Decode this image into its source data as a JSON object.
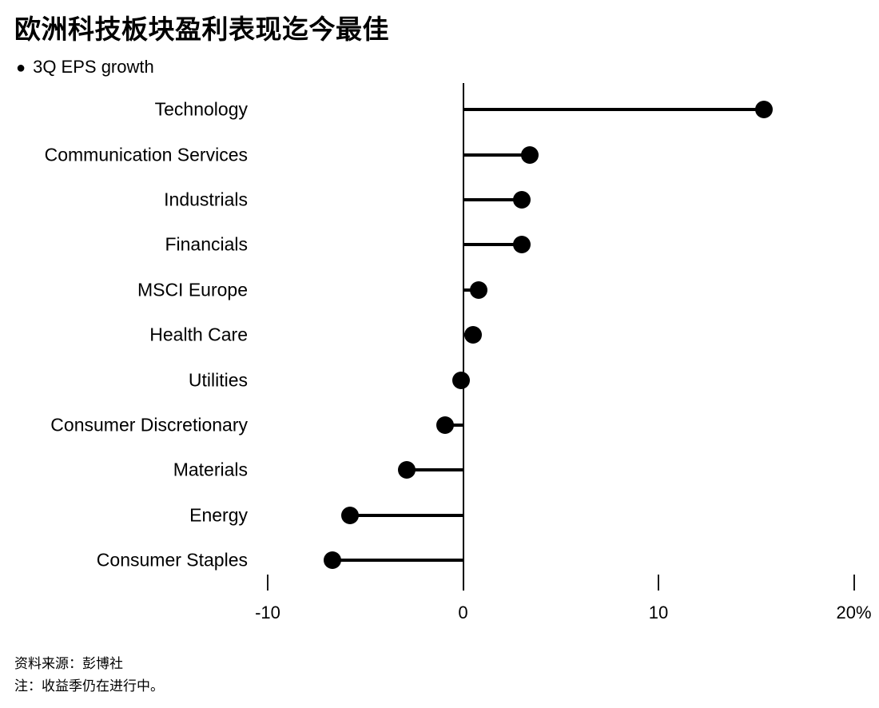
{
  "header": {
    "title": "欧洲科技板块盈利表现迄今最佳",
    "legend": {
      "marker": "●",
      "label": "3Q EPS growth"
    }
  },
  "chart_data": {
    "type": "bar",
    "variant": "horizontal-lollipop",
    "title": "欧洲科技板块盈利表现迄今最佳",
    "series_name": "3Q EPS growth",
    "categories": [
      "Technology",
      "Communication Services",
      "Industrials",
      "Financials",
      "MSCI Europe",
      "Health Care",
      "Utilities",
      "Consumer Discretionary",
      "Materials",
      "Energy",
      "Consumer Staples"
    ],
    "values": [
      15.4,
      3.4,
      3.0,
      3.0,
      0.8,
      0.5,
      -0.1,
      -0.9,
      -2.9,
      -5.8,
      -6.7
    ],
    "unit": "%",
    "xlabel": "",
    "ylabel": "",
    "xlim": [
      -11,
      21.5
    ],
    "x_ticks": [
      {
        "value": -10,
        "label": "-10"
      },
      {
        "value": 0,
        "label": "0"
      },
      {
        "value": 10,
        "label": "10"
      },
      {
        "value": 20,
        "label": "20%"
      }
    ],
    "baseline": 0,
    "grid": false,
    "legend_position": "top-left",
    "marker_color": "#000000",
    "background_color": "#ffffff"
  },
  "footer": {
    "source": "资料来源：彭博社",
    "note": "注：收益季仍在进行中。"
  }
}
